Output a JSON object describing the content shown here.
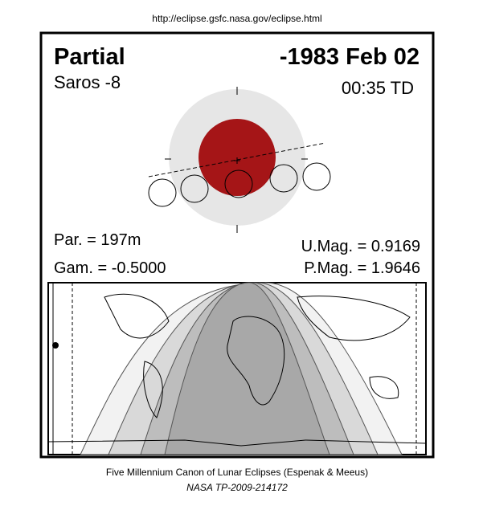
{
  "url": "http://eclipse.gsfc.nasa.gov/eclipse.html",
  "header": {
    "type": "Partial",
    "date": "-1983 Feb 02",
    "saros": "Saros  -8",
    "time": "00:35 TD"
  },
  "stats": {
    "par": "Par. = 197m",
    "gam": "Gam. = -0.5000",
    "umag": "U.Mag. = 0.9169",
    "pmag": "P.Mag. = 1.9646"
  },
  "footer": {
    "line1": "Five Millennium Canon of Lunar Eclipses (Espenak & Meeus)",
    "line2": "NASA TP-2009-214172"
  }
}
